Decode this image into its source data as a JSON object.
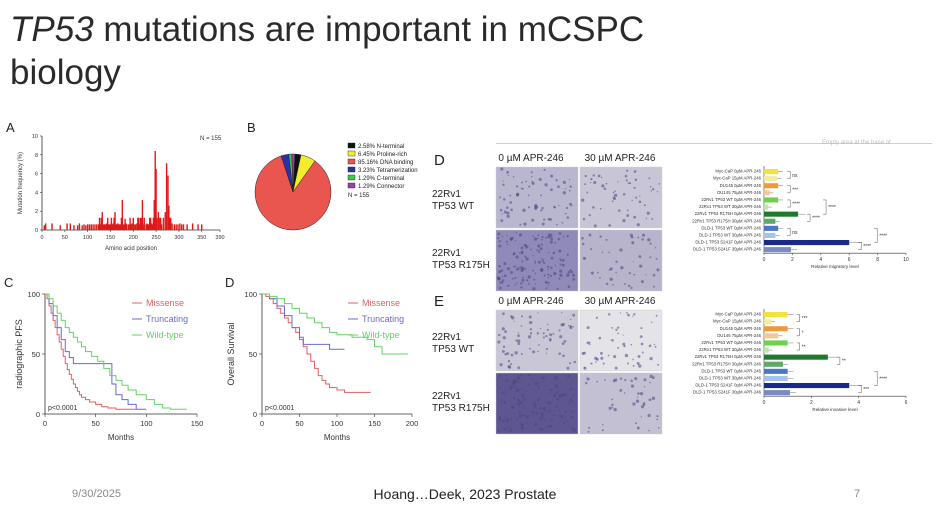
{
  "slide": {
    "title_italic": "TP53",
    "title_rest": " mutations are important in mCSPC biology",
    "date": "9/30/2025",
    "citation": "Hoang…Deek, 2023 Prostate",
    "page_number": "7",
    "top_note": "Empty area at the base of"
  },
  "panels": {
    "A": {
      "label": "A",
      "chart_data": {
        "type": "bar",
        "ylabel": "Mutation frequency (%)",
        "xlabel": "Amino acid position",
        "annotation": "N = 155",
        "xlim": [
          0,
          390
        ],
        "ylim": [
          0,
          10
        ],
        "xticks": [
          "0",
          "50",
          "100",
          "150",
          "200",
          "250",
          "300",
          "350",
          "390"
        ],
        "yticks": [
          "0",
          "2",
          "4",
          "6",
          "8",
          "10"
        ],
        "x": [
          5,
          8,
          22,
          40,
          55,
          62,
          70,
          78,
          82,
          88,
          92,
          96,
          100,
          104,
          108,
          112,
          116,
          120,
          124,
          126,
          128,
          130,
          132,
          134,
          136,
          138,
          140,
          142,
          144,
          146,
          148,
          150,
          152,
          154,
          156,
          158,
          160,
          162,
          164,
          166,
          168,
          170,
          172,
          174,
          176,
          178,
          180,
          182,
          184,
          186,
          190,
          193,
          195,
          197,
          200,
          202,
          205,
          208,
          210,
          212,
          214,
          216,
          218,
          220,
          222,
          224,
          228,
          230,
          232,
          234,
          236,
          238,
          240,
          242,
          244,
          245,
          246,
          248,
          250,
          252,
          255,
          258,
          260,
          262,
          266,
          270,
          273,
          276,
          278,
          280,
          282,
          285,
          290,
          294,
          298,
          302,
          306,
          310,
          318,
          330,
          342,
          350
        ],
        "values": [
          0.5,
          0.7,
          0.7,
          0.5,
          0.7,
          0.7,
          0.5,
          0.5,
          0.7,
          0.5,
          0.6,
          0.5,
          0.6,
          0.6,
          0.6,
          0.6,
          0.6,
          0.6,
          0.6,
          1.3,
          0.6,
          1.3,
          1.9,
          0.6,
          0.6,
          0.6,
          0.6,
          0.7,
          1.3,
          0.6,
          0.6,
          0.6,
          1.3,
          0.6,
          0.7,
          1.3,
          1.9,
          0.6,
          0.6,
          0.7,
          0.6,
          0.6,
          0.6,
          1.3,
          3.2,
          0.6,
          0.6,
          1.2,
          0.7,
          0.6,
          0.6,
          1.3,
          0.6,
          0.7,
          1.3,
          0.6,
          0.6,
          0.7,
          1.3,
          1.3,
          0.6,
          1.3,
          1.3,
          3.2,
          0.6,
          1.3,
          0.6,
          0.7,
          0.6,
          0.6,
          1.3,
          1.3,
          0.7,
          0.6,
          1.3,
          1.3,
          3.2,
          8.4,
          6.5,
          1.3,
          1.9,
          1.3,
          1.3,
          0.6,
          1.3,
          1.9,
          7.1,
          5.8,
          2.6,
          1.3,
          1.3,
          0.7,
          0.6,
          0.6,
          0.6,
          0.7,
          0.6,
          0.6,
          0.6,
          0.7,
          0.6,
          0.6
        ]
      }
    },
    "B": {
      "label": "B",
      "chart_data": {
        "type": "pie",
        "annotation": "N = 155",
        "slices": [
          {
            "name": "N-terminal",
            "percent_label": "2.58%",
            "value": 2.58,
            "color": "#111111"
          },
          {
            "name": "Proline-rich",
            "percent_label": "6.45%",
            "value": 6.45,
            "color": "#f2ec2c"
          },
          {
            "name": "DNA binding",
            "percent_label": "85.16%",
            "value": 85.16,
            "color": "#e8564f"
          },
          {
            "name": "Tetramerization",
            "percent_label": "3.23%",
            "value": 3.23,
            "color": "#2a32a8"
          },
          {
            "name": "C-terminal",
            "percent_label": "1.29%",
            "value": 1.29,
            "color": "#3cc94a"
          },
          {
            "name": "Connector",
            "percent_label": "1.29%",
            "value": 1.29,
            "color": "#a33ab0"
          }
        ]
      }
    },
    "C": {
      "label": "C",
      "chart_data": {
        "type": "line",
        "ylabel": "radiographic PFS",
        "xlabel": "Months",
        "pvalue": "p<0.0001",
        "xlim": [
          0,
          150
        ],
        "ylim": [
          0,
          100
        ],
        "xticks": [
          "0",
          "50",
          "100",
          "150"
        ],
        "yticks": [
          "0",
          "50",
          "100"
        ],
        "series": [
          {
            "name": "Missense",
            "color": "#e06060",
            "x": [
              0,
              2,
              4,
              6,
              8,
              10,
              12,
              14,
              16,
              18,
              20,
              22,
              24,
              26,
              28,
              30,
              32,
              34,
              36,
              40,
              44,
              50,
              56,
              62,
              70,
              80,
              90
            ],
            "values": [
              100,
              96,
              90,
              84,
              78,
              72,
              66,
              60,
              54,
              48,
              42,
              37,
              33,
              29,
              25,
              22,
              19,
              16,
              14,
              12,
              10,
              8,
              6,
              5,
              4,
              4,
              4
            ]
          },
          {
            "name": "Truncating",
            "color": "#6a6acc",
            "x": [
              0,
              4,
              8,
              12,
              16,
              20,
              24,
              28,
              36,
              44,
              52,
              60,
              66,
              70,
              76,
              82,
              90,
              100
            ],
            "values": [
              100,
              92,
              82,
              72,
              62,
              52,
              47,
              42,
              42,
              42,
              42,
              42,
              25,
              16,
              12,
              8,
              4,
              4
            ]
          },
          {
            "name": "Wild-type",
            "color": "#66d066",
            "x": [
              0,
              4,
              8,
              12,
              16,
              20,
              24,
              28,
              32,
              36,
              40,
              46,
              52,
              58,
              64,
              70,
              76,
              82,
              90,
              100,
              108,
              116,
              124,
              140
            ],
            "values": [
              100,
              96,
              90,
              84,
              78,
              72,
              68,
              64,
              60,
              56,
              52,
              48,
              44,
              38,
              32,
              28,
              24,
              20,
              16,
              12,
              8,
              5,
              4,
              4
            ]
          }
        ]
      }
    },
    "D_survival": {
      "label": "D",
      "chart_data": {
        "type": "line",
        "ylabel": "Overall Survival",
        "xlabel": "Months",
        "pvalue": "p<0.0001",
        "xlim": [
          0,
          200
        ],
        "ylim": [
          0,
          100
        ],
        "xticks": [
          "0",
          "50",
          "100",
          "150",
          "200"
        ],
        "yticks": [
          "0",
          "50",
          "100"
        ],
        "series": [
          {
            "name": "Missense",
            "color": "#e06060",
            "x": [
              0,
              5,
              10,
              15,
              20,
              25,
              30,
              35,
              40,
              45,
              50,
              55,
              60,
              65,
              70,
              75,
              80,
              85,
              90,
              100,
              110,
              120,
              145
            ],
            "values": [
              100,
              98,
              96,
              92,
              88,
              84,
              80,
              76,
              72,
              68,
              62,
              56,
              50,
              44,
              38,
              32,
              28,
              25,
              22,
              20,
              18,
              18,
              18
            ]
          },
          {
            "name": "Truncating",
            "color": "#6a6acc",
            "x": [
              0,
              10,
              20,
              30,
              40,
              50,
              55,
              60,
              70,
              80,
              90,
              100,
              110
            ],
            "values": [
              100,
              96,
              90,
              82,
              72,
              64,
              58,
              58,
              58,
              58,
              54,
              54,
              54
            ]
          },
          {
            "name": "Wild-type",
            "color": "#66d066",
            "x": [
              0,
              10,
              20,
              30,
              40,
              50,
              60,
              70,
              80,
              90,
              100,
              120,
              140,
              150,
              160,
              175,
              195
            ],
            "values": [
              100,
              98,
              96,
              92,
              88,
              84,
              80,
              76,
              72,
              68,
              66,
              64,
              62,
              56,
              50,
              50,
              50
            ]
          }
        ]
      }
    },
    "D": {
      "label": "D",
      "col1": "0 µM APR-246",
      "col2": "30 µM APR-246",
      "row1": [
        "22Rv1",
        "TP53 WT"
      ],
      "row2": [
        "22Rv1",
        "TP53 R175H"
      ],
      "chart_data": {
        "type": "bar",
        "xlabel": "Relative migratory level",
        "xlim": [
          0,
          10
        ],
        "xticks": [
          "0",
          "2",
          "4",
          "6",
          "8",
          "10"
        ],
        "categories": [
          "Myc-CaP 0µM APR-246",
          "Myc-CaP 15µM APR-246",
          "DU145 0µM APR-246",
          "DU145 75µM APR-246",
          "22Rv1 TP53 WT 0µM APR-246",
          "22Rv1 TP53 WT 30µM APR-246",
          "22Rv1 TP53 R175H 0µM APR-246",
          "22Rv1 TP53 R175H 30µM APR-246",
          "DLD-1 TP53 WT 0µM APR-246",
          "DLD-1 TP53 WT 30µM APR-246",
          "DLD-1 TP53 S241F 0µM APR-246",
          "DLD-1 TP53 S241F 30µM APR-246"
        ],
        "values": [
          1.0,
          0.9,
          1.0,
          0.4,
          1.0,
          0.3,
          2.4,
          0.8,
          1.0,
          0.8,
          6.0,
          1.9
        ],
        "colors": [
          "#f2e23c",
          "#f2ec9c",
          "#ef9a3a",
          "#f4c79a",
          "#6ed04e",
          "#b9e8a8",
          "#1f7a2e",
          "#5fa868",
          "#4a78c8",
          "#a8c2ea",
          "#1a2a8a",
          "#7a8ac4"
        ],
        "significance": [
          "ns",
          "***",
          "****",
          "****",
          "****",
          "ns",
          "****",
          "****"
        ]
      }
    },
    "E": {
      "label": "E",
      "col1": "0 µM APR-246",
      "col2": "30 µM APR-246",
      "row1": [
        "22Rv1",
        "TP53 WT"
      ],
      "row2": [
        "22Rv1",
        "TP53 R175H"
      ],
      "chart_data": {
        "type": "bar",
        "xlabel": "Relative invasive level",
        "xlim": [
          0,
          6
        ],
        "xticks": [
          "0",
          "2",
          "4",
          "6"
        ],
        "categories": [
          "Myc-CaP 0µM APR-246",
          "Myc-CaP 15µM APR-246",
          "DU145 0µM APR-246",
          "DU145 75µM APR-246",
          "22Rv1 TP53 WT 0µM APR-246",
          "22Rv1 TP53 WT 30µM APR-246",
          "22Rv1 TP53 R175H 0µM APR-246",
          "22Rv1 TP53 R175H 30µM APR-246",
          "DLD-1 TP53 WT 0µM APR-246",
          "DLD-1 TP53 WT 30µM APR-246",
          "DLD-1 TP53 S241F 0µM APR-246",
          "DLD-1 TP53 S241F 30µM APR-246"
        ],
        "values": [
          1.0,
          0.3,
          1.0,
          0.6,
          1.0,
          0.2,
          2.7,
          0.8,
          1.0,
          1.0,
          3.6,
          1.1
        ],
        "colors": [
          "#f2e23c",
          "#f2ec9c",
          "#ef9a3a",
          "#f4c79a",
          "#6ed04e",
          "#b9e8a8",
          "#1f7a2e",
          "#5fa868",
          "#4a78c8",
          "#a8c2ea",
          "#1a2a8a",
          "#7a8ac4"
        ],
        "significance": [
          "***",
          "*",
          "**",
          "**",
          "****",
          "***"
        ]
      }
    }
  }
}
